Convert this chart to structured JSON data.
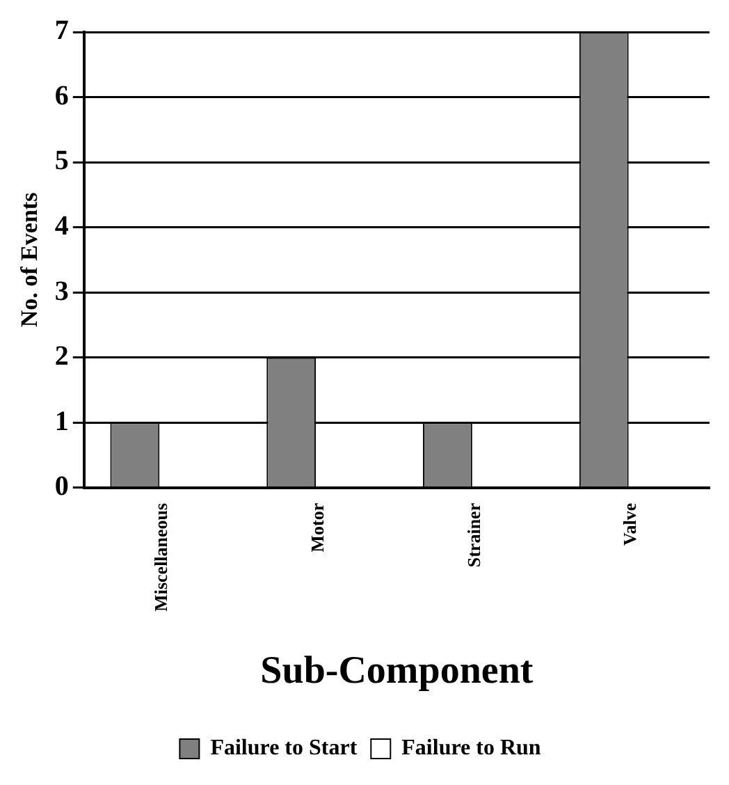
{
  "chart_data": {
    "type": "bar",
    "xlabel": "Sub-Component",
    "ylabel": "No. of Events",
    "categories": [
      "Miscellaneous",
      "Motor",
      "Strainer",
      "Valve"
    ],
    "series": [
      {
        "name": "Failure to Start",
        "color": "#808080",
        "values": [
          1,
          2,
          1,
          7
        ]
      },
      {
        "name": "Failure to Run",
        "color": "#ffffff",
        "values": [
          0,
          0,
          0,
          0
        ]
      }
    ],
    "ylim": [
      0,
      7
    ],
    "yticks": [
      0,
      1,
      2,
      3,
      4,
      5,
      6,
      7
    ],
    "grid": "y",
    "legend": "bottom"
  }
}
